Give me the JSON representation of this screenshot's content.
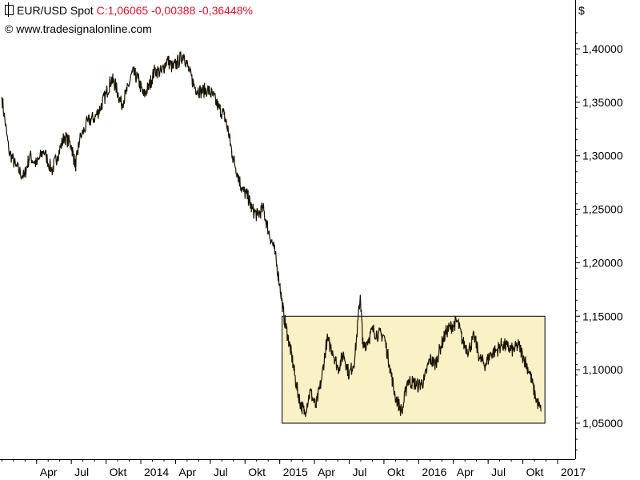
{
  "header": {
    "instrument": "EUR/USD Spot",
    "quote": "C:1,06065 -0,00388 -0,36448%",
    "copyright": "© www.tradesignalonline.com",
    "currency": "$"
  },
  "colors": {
    "series": "#1a1400",
    "highlight_fill": "#fbf1c7",
    "highlight_stroke": "#000000",
    "quote": "#e8102a"
  },
  "chart_data": {
    "type": "line",
    "title": "EUR/USD Spot",
    "ylabel": "$",
    "ylim": [
      1.02,
      1.43
    ],
    "y_ticks": [
      "1,40000",
      "1,35000",
      "1,30000",
      "1,25000",
      "1,20000",
      "1,15000",
      "1,10000",
      "1,05000"
    ],
    "y_tick_values": [
      1.4,
      1.35,
      1.3,
      1.25,
      1.2,
      1.15,
      1.1,
      1.05
    ],
    "x_ticks": [
      "Apr",
      "Jul",
      "Okt",
      "2014",
      "Apr",
      "Jul",
      "Okt",
      "2015",
      "Apr",
      "Jul",
      "Okt",
      "2016",
      "Apr",
      "Jul",
      "Okt",
      "2017"
    ],
    "x_tick_positions": [
      2013.25,
      2013.5,
      2013.75,
      2014.0,
      2014.25,
      2014.5,
      2014.75,
      2015.0,
      2015.25,
      2015.5,
      2015.75,
      2016.0,
      2016.25,
      2016.5,
      2016.75,
      2017.0
    ],
    "xlim": [
      2013.0,
      2017.0
    ],
    "series": [
      {
        "values": [
          [
            2013.0,
            1.355
          ],
          [
            2013.05,
            1.305
          ],
          [
            2013.1,
            1.29
          ],
          [
            2013.16,
            1.28
          ],
          [
            2013.2,
            1.3
          ],
          [
            2013.25,
            1.292
          ],
          [
            2013.3,
            1.305
          ],
          [
            2013.36,
            1.286
          ],
          [
            2013.4,
            1.3
          ],
          [
            2013.45,
            1.318
          ],
          [
            2013.5,
            1.31
          ],
          [
            2013.53,
            1.29
          ],
          [
            2013.56,
            1.315
          ],
          [
            2013.62,
            1.332
          ],
          [
            2013.67,
            1.336
          ],
          [
            2013.71,
            1.345
          ],
          [
            2013.75,
            1.358
          ],
          [
            2013.79,
            1.372
          ],
          [
            2013.82,
            1.365
          ],
          [
            2013.86,
            1.348
          ],
          [
            2013.9,
            1.36
          ],
          [
            2013.94,
            1.378
          ],
          [
            2013.98,
            1.372
          ],
          [
            2014.02,
            1.356
          ],
          [
            2014.06,
            1.365
          ],
          [
            2014.1,
            1.38
          ],
          [
            2014.15,
            1.378
          ],
          [
            2014.19,
            1.39
          ],
          [
            2014.23,
            1.382
          ],
          [
            2014.27,
            1.388
          ],
          [
            2014.31,
            1.395
          ],
          [
            2014.35,
            1.378
          ],
          [
            2014.39,
            1.364
          ],
          [
            2014.43,
            1.36
          ],
          [
            2014.48,
            1.362
          ],
          [
            2014.52,
            1.356
          ],
          [
            2014.56,
            1.345
          ],
          [
            2014.6,
            1.338
          ],
          [
            2014.63,
            1.323
          ],
          [
            2014.66,
            1.3
          ],
          [
            2014.7,
            1.282
          ],
          [
            2014.73,
            1.268
          ],
          [
            2014.77,
            1.262
          ],
          [
            2014.8,
            1.25
          ],
          [
            2014.84,
            1.244
          ],
          [
            2014.88,
            1.251
          ],
          [
            2014.92,
            1.229
          ],
          [
            2014.96,
            1.213
          ],
          [
            2015.0,
            1.18
          ],
          [
            2015.03,
            1.15
          ],
          [
            2015.06,
            1.13
          ],
          [
            2015.09,
            1.11
          ],
          [
            2015.12,
            1.085
          ],
          [
            2015.15,
            1.068
          ],
          [
            2015.18,
            1.06
          ],
          [
            2015.22,
            1.08
          ],
          [
            2015.26,
            1.065
          ],
          [
            2015.3,
            1.09
          ],
          [
            2015.34,
            1.128
          ],
          [
            2015.38,
            1.118
          ],
          [
            2015.42,
            1.101
          ],
          [
            2015.46,
            1.115
          ],
          [
            2015.5,
            1.095
          ],
          [
            2015.54,
            1.11
          ],
          [
            2015.58,
            1.17
          ],
          [
            2015.6,
            1.12
          ],
          [
            2015.63,
            1.127
          ],
          [
            2015.67,
            1.137
          ],
          [
            2015.71,
            1.133
          ],
          [
            2015.75,
            1.132
          ],
          [
            2015.79,
            1.105
          ],
          [
            2015.83,
            1.076
          ],
          [
            2015.88,
            1.06
          ],
          [
            2015.92,
            1.09
          ],
          [
            2015.96,
            1.088
          ],
          [
            2016.0,
            1.085
          ],
          [
            2016.04,
            1.09
          ],
          [
            2016.08,
            1.11
          ],
          [
            2016.12,
            1.105
          ],
          [
            2016.16,
            1.122
          ],
          [
            2016.2,
            1.136
          ],
          [
            2016.24,
            1.141
          ],
          [
            2016.28,
            1.145
          ],
          [
            2016.32,
            1.125
          ],
          [
            2016.36,
            1.118
          ],
          [
            2016.4,
            1.131
          ],
          [
            2016.44,
            1.11
          ],
          [
            2016.48,
            1.105
          ],
          [
            2016.52,
            1.115
          ],
          [
            2016.56,
            1.118
          ],
          [
            2016.6,
            1.124
          ],
          [
            2016.64,
            1.121
          ],
          [
            2016.68,
            1.118
          ],
          [
            2016.72,
            1.123
          ],
          [
            2016.76,
            1.11
          ],
          [
            2016.8,
            1.097
          ],
          [
            2016.84,
            1.075
          ],
          [
            2016.88,
            1.061
          ]
        ]
      }
    ],
    "annotations": [
      {
        "type": "range-box",
        "x_from": 2015.0,
        "x_to": 2016.88,
        "y_from": 1.05,
        "y_to": 1.15
      }
    ],
    "grid": false,
    "legend": "none"
  }
}
